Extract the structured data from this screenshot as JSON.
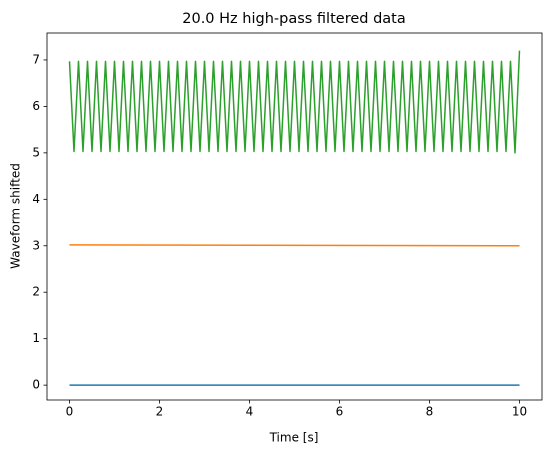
{
  "chart_data": {
    "type": "line",
    "title": "20.0 Hz high-pass filtered data",
    "x_label": "Time [s]",
    "y_label": "Waveform shifted",
    "xlim": [
      -0.5,
      10.5
    ],
    "ylim": [
      -0.32,
      7.58
    ],
    "xticks": [
      0,
      2,
      4,
      6,
      8,
      10
    ],
    "yticks": [
      0,
      1,
      2,
      3,
      4,
      5,
      6,
      7
    ],
    "series": [
      {
        "color": "#1f77b4",
        "x": [
          0,
          10
        ],
        "values": [
          0,
          0
        ]
      },
      {
        "color": "#ff7f0e",
        "x": [
          0,
          10
        ],
        "values": [
          3.02,
          3
        ]
      },
      {
        "color": "#2ca02c",
        "x": [
          0,
          0.1,
          0.2,
          0.3,
          0.4,
          0.5,
          0.6,
          0.7,
          0.8,
          0.9,
          1,
          1.1,
          1.2,
          1.3,
          1.4,
          1.5,
          1.6,
          1.7,
          1.8,
          1.9,
          2,
          2.1,
          2.2,
          2.3,
          2.4,
          2.5,
          2.6,
          2.7,
          2.8,
          2.9,
          3,
          3.1,
          3.2,
          3.3,
          3.4,
          3.5,
          3.6,
          3.7,
          3.8,
          3.9,
          4,
          4.1,
          4.2,
          4.3,
          4.4,
          4.5,
          4.6,
          4.7,
          4.8,
          4.9,
          5,
          5.1,
          5.2,
          5.3,
          5.4,
          5.5,
          5.6,
          5.7,
          5.8,
          5.9,
          6,
          6.1,
          6.2,
          6.3,
          6.4,
          6.5,
          6.6,
          6.7,
          6.8,
          6.9,
          7,
          7.1,
          7.2,
          7.3,
          7.4,
          7.5,
          7.6,
          7.7,
          7.8,
          7.9,
          8,
          8.1,
          8.2,
          8.3,
          8.4,
          8.5,
          8.6,
          8.7,
          8.8,
          8.9,
          9,
          9.1,
          9.2,
          9.3,
          9.4,
          9.5,
          9.6,
          9.7,
          9.8,
          9.9,
          10
        ],
        "values": [
          6.97,
          5.03,
          6.97,
          5.03,
          6.97,
          5.03,
          6.97,
          5.03,
          6.97,
          5.03,
          6.97,
          5.03,
          6.97,
          5.03,
          6.97,
          5.03,
          6.97,
          5.03,
          6.97,
          5.03,
          6.97,
          5.03,
          6.97,
          5.03,
          6.97,
          5.03,
          6.97,
          5.03,
          6.97,
          5.03,
          6.97,
          5.03,
          6.97,
          5.03,
          6.97,
          5.03,
          6.97,
          5.03,
          6.97,
          5.03,
          6.97,
          5.03,
          6.97,
          5.03,
          6.97,
          5.03,
          6.97,
          5.03,
          6.97,
          5.03,
          6.97,
          5.03,
          6.97,
          5.03,
          6.97,
          5.03,
          6.97,
          5.03,
          6.97,
          5.03,
          6.97,
          5.03,
          6.97,
          5.03,
          6.97,
          5.03,
          6.97,
          5.03,
          6.97,
          5.03,
          6.97,
          5.03,
          6.97,
          5.03,
          6.97,
          5.03,
          6.97,
          5.03,
          6.97,
          5.03,
          6.97,
          5.03,
          6.97,
          5.03,
          6.97,
          5.03,
          6.97,
          5.03,
          6.97,
          5.03,
          6.97,
          5.03,
          6.97,
          5.03,
          6.97,
          5.03,
          6.97,
          5.03,
          6.97,
          5.0,
          7.2
        ]
      }
    ]
  }
}
